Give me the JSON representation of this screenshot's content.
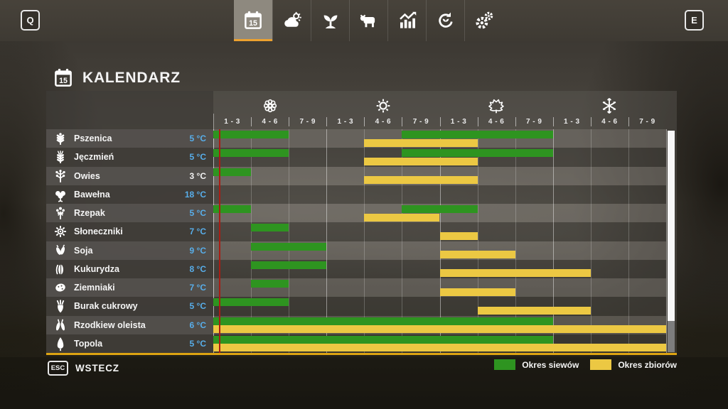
{
  "colors": {
    "sow_green": "#2e9420",
    "harvest_yellow": "#ecc843",
    "temp_blue": "#58aeea",
    "day_marker_red": "#a81d14",
    "accent_orange": "#eda22f",
    "panel_border_gold": "#dda412"
  },
  "toolbar": {
    "left_hotkey": "Q",
    "right_hotkey": "E",
    "calendar_badge": "15",
    "tabs": [
      {
        "name": "calendar",
        "icon": "calendar-icon",
        "active": true
      },
      {
        "name": "weather",
        "icon": "weather-icon",
        "active": false
      },
      {
        "name": "crops",
        "icon": "crops-icon",
        "active": false
      },
      {
        "name": "animals",
        "icon": "cow-icon",
        "active": false
      },
      {
        "name": "statistics",
        "icon": "statistics-icon",
        "active": false
      },
      {
        "name": "crop-rotation",
        "icon": "rotation-icon",
        "active": false
      },
      {
        "name": "settings",
        "icon": "gear-icon",
        "active": false
      }
    ]
  },
  "page": {
    "title": "KALENDARZ",
    "title_icon": "calendar-icon"
  },
  "chart_data": {
    "type": "gantt-calendar",
    "seasons": [
      {
        "name": "spring",
        "icon": "flower-icon"
      },
      {
        "name": "summer",
        "icon": "sun-icon"
      },
      {
        "name": "autumn",
        "icon": "maple-leaf-icon"
      },
      {
        "name": "winter",
        "icon": "snowflake-icon"
      }
    ],
    "period_labels": [
      "1 - 3",
      "4 - 6",
      "7 - 9"
    ],
    "columns_per_season": 3,
    "day_marker_column_offset": 0.16,
    "rows": [
      {
        "crop": "Pszenica",
        "icon": "wheat-icon",
        "temp": "5 °C",
        "temp_style": "blue",
        "sow": [
          [
            0,
            2
          ],
          [
            5,
            9
          ]
        ],
        "harvest": [
          [
            4,
            7
          ]
        ]
      },
      {
        "crop": "Jęczmień",
        "icon": "barley-icon",
        "temp": "5 °C",
        "temp_style": "blue",
        "sow": [
          [
            0,
            2
          ],
          [
            5,
            9
          ]
        ],
        "harvest": [
          [
            4,
            7
          ]
        ]
      },
      {
        "crop": "Owies",
        "icon": "oat-icon",
        "temp": "3 °C",
        "temp_style": "white",
        "sow": [
          [
            0,
            1
          ]
        ],
        "harvest": [
          [
            4,
            7
          ]
        ]
      },
      {
        "crop": "Bawełna",
        "icon": "cotton-icon",
        "temp": "18 °C",
        "temp_style": "blue",
        "sow": [],
        "harvest": []
      },
      {
        "crop": "Rzepak",
        "icon": "canola-icon",
        "temp": "5 °C",
        "temp_style": "blue",
        "sow": [
          [
            0,
            1
          ],
          [
            5,
            7
          ]
        ],
        "harvest": [
          [
            4,
            6
          ]
        ]
      },
      {
        "crop": "Słoneczniki",
        "icon": "sunflower-icon",
        "temp": "7 °C",
        "temp_style": "blue",
        "sow": [
          [
            1,
            2
          ]
        ],
        "harvest": [
          [
            6,
            7
          ]
        ]
      },
      {
        "crop": "Soja",
        "icon": "soybean-icon",
        "temp": "9 °C",
        "temp_style": "blue",
        "sow": [
          [
            1,
            3
          ]
        ],
        "harvest": [
          [
            6,
            8
          ]
        ]
      },
      {
        "crop": "Kukurydza",
        "icon": "corn-icon",
        "temp": "8 °C",
        "temp_style": "blue",
        "sow": [
          [
            1,
            3
          ]
        ],
        "harvest": [
          [
            6,
            10
          ]
        ]
      },
      {
        "crop": "Ziemniaki",
        "icon": "potato-icon",
        "temp": "7 °C",
        "temp_style": "blue",
        "sow": [
          [
            1,
            2
          ]
        ],
        "harvest": [
          [
            6,
            8
          ]
        ]
      },
      {
        "crop": "Burak cukrowy",
        "icon": "sugar-beet-icon",
        "temp": "5 °C",
        "temp_style": "blue",
        "sow": [
          [
            0,
            2
          ]
        ],
        "harvest": [
          [
            7,
            10
          ]
        ]
      },
      {
        "crop": "Rzodkiew oleista",
        "icon": "oilseed-radish-icon",
        "temp": "6 °C",
        "temp_style": "blue",
        "sow": [
          [
            0,
            9
          ]
        ],
        "harvest": [
          [
            0,
            12
          ]
        ]
      },
      {
        "crop": "Topola",
        "icon": "poplar-icon",
        "temp": "5 °C",
        "temp_style": "blue",
        "sow": [
          [
            0,
            9
          ]
        ],
        "harvest": [
          [
            0,
            12
          ]
        ]
      }
    ],
    "legend": [
      {
        "label": "Okres siewów",
        "color_key": "sow_green"
      },
      {
        "label": "Okres zbiorów",
        "color_key": "harvest_yellow"
      }
    ]
  },
  "footer": {
    "hotkey": "ESC",
    "back_label": "WSTECZ"
  }
}
